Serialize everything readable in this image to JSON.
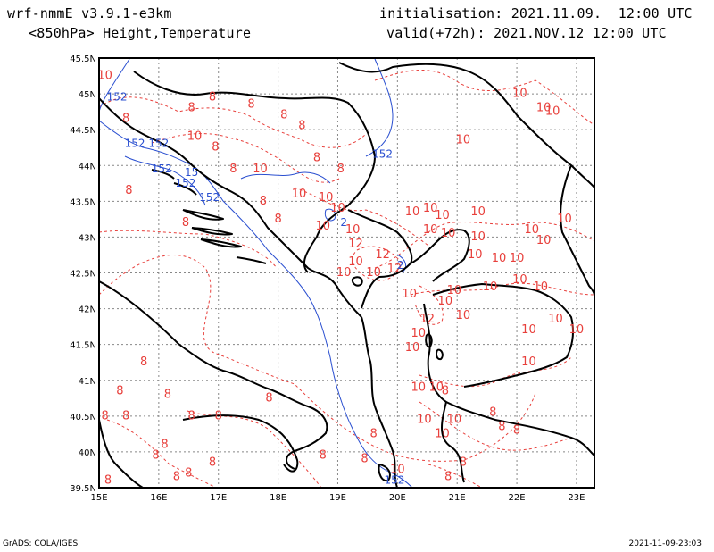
{
  "header": {
    "model": "wrf-nmmE_v3.9.1-e3km",
    "field": "<850hPa> Height,Temperature",
    "init": "initialisation: 2021.11.09.  12:00 UTC",
    "valid": "valid(+72h): 2021.NOV.12 12:00 UTC"
  },
  "axes": {
    "lon_ticks": [
      "15E",
      "16E",
      "17E",
      "18E",
      "19E",
      "20E",
      "21E",
      "22E",
      "23E"
    ],
    "lat_ticks": [
      "45.5N",
      "45N",
      "44.5N",
      "44N",
      "43.5N",
      "43N",
      "42.5N",
      "42N",
      "41.5N",
      "41N",
      "40.5N",
      "40N",
      "39.5N"
    ],
    "lon_range": [
      15,
      23.3
    ],
    "lat_range": [
      39.5,
      45.5
    ]
  },
  "footer": {
    "left": "GrADS: COLA/IGES",
    "right": "2021-11-09-23:03"
  },
  "colors": {
    "temperature": "#e8403c",
    "height": "#2a4fd0",
    "coast": "#000000",
    "grid": "#888888"
  },
  "contour_labels": {
    "temperature": [
      {
        "t": "10",
        "lon": 15.1,
        "lat": 45.25
      },
      {
        "t": "8",
        "lon": 15.45,
        "lat": 44.65
      },
      {
        "t": "8",
        "lon": 16.55,
        "lat": 44.8
      },
      {
        "t": "8",
        "lon": 16.9,
        "lat": 44.95
      },
      {
        "t": "8",
        "lon": 17.55,
        "lat": 44.85
      },
      {
        "t": "8",
        "lon": 18.1,
        "lat": 44.7
      },
      {
        "t": "8",
        "lon": 18.4,
        "lat": 44.55
      },
      {
        "t": "10",
        "lon": 16.6,
        "lat": 44.4
      },
      {
        "t": "8",
        "lon": 16.95,
        "lat": 44.25
      },
      {
        "t": "8",
        "lon": 17.25,
        "lat": 43.95
      },
      {
        "t": "10",
        "lon": 17.7,
        "lat": 43.95
      },
      {
        "t": "8",
        "lon": 18.65,
        "lat": 44.1
      },
      {
        "t": "8",
        "lon": 19.05,
        "lat": 43.95
      },
      {
        "t": "10",
        "lon": 18.35,
        "lat": 43.6
      },
      {
        "t": "8",
        "lon": 17.75,
        "lat": 43.5
      },
      {
        "t": "8",
        "lon": 18.0,
        "lat": 43.25
      },
      {
        "t": "10",
        "lon": 18.8,
        "lat": 43.55
      },
      {
        "t": "10",
        "lon": 19.0,
        "lat": 43.4
      },
      {
        "t": "10",
        "lon": 19.25,
        "lat": 43.1
      },
      {
        "t": "10",
        "lon": 18.75,
        "lat": 43.15
      },
      {
        "t": "12",
        "lon": 19.3,
        "lat": 42.9
      },
      {
        "t": "10",
        "lon": 19.3,
        "lat": 42.65
      },
      {
        "t": "12",
        "lon": 19.75,
        "lat": 42.75
      },
      {
        "t": "10",
        "lon": 19.6,
        "lat": 42.5
      },
      {
        "t": "12",
        "lon": 19.95,
        "lat": 42.55
      },
      {
        "t": "10",
        "lon": 19.1,
        "lat": 42.5
      },
      {
        "t": "8",
        "lon": 15.5,
        "lat": 43.65
      },
      {
        "t": "8",
        "lon": 16.45,
        "lat": 43.2
      },
      {
        "t": "10",
        "lon": 20.25,
        "lat": 43.35
      },
      {
        "t": "10",
        "lon": 20.55,
        "lat": 43.4
      },
      {
        "t": "10",
        "lon": 20.75,
        "lat": 43.3
      },
      {
        "t": "10",
        "lon": 21.35,
        "lat": 43.35
      },
      {
        "t": "10",
        "lon": 20.55,
        "lat": 43.1
      },
      {
        "t": "10",
        "lon": 20.85,
        "lat": 43.05
      },
      {
        "t": "10",
        "lon": 21.35,
        "lat": 43.0
      },
      {
        "t": "10",
        "lon": 21.3,
        "lat": 42.75
      },
      {
        "t": "10",
        "lon": 21.7,
        "lat": 42.7
      },
      {
        "t": "10",
        "lon": 22.0,
        "lat": 42.7
      },
      {
        "t": "10",
        "lon": 22.25,
        "lat": 43.1
      },
      {
        "t": "10",
        "lon": 22.45,
        "lat": 42.95
      },
      {
        "t": "10",
        "lon": 22.8,
        "lat": 43.25
      },
      {
        "t": "10",
        "lon": 21.1,
        "lat": 44.35
      },
      {
        "t": "10",
        "lon": 22.05,
        "lat": 45.0
      },
      {
        "t": "10",
        "lon": 22.45,
        "lat": 44.8
      },
      {
        "t": "10",
        "lon": 22.6,
        "lat": 44.75
      },
      {
        "t": "10",
        "lon": 20.95,
        "lat": 42.25
      },
      {
        "t": "10",
        "lon": 21.55,
        "lat": 42.3
      },
      {
        "t": "10",
        "lon": 22.05,
        "lat": 42.4
      },
      {
        "t": "10",
        "lon": 22.4,
        "lat": 42.3
      },
      {
        "t": "10",
        "lon": 20.8,
        "lat": 42.1
      },
      {
        "t": "12",
        "lon": 20.5,
        "lat": 41.85
      },
      {
        "t": "10",
        "lon": 20.2,
        "lat": 42.2
      },
      {
        "t": "10",
        "lon": 20.35,
        "lat": 41.65
      },
      {
        "t": "10",
        "lon": 20.25,
        "lat": 41.45
      },
      {
        "t": "10",
        "lon": 21.1,
        "lat": 41.9
      },
      {
        "t": "10",
        "lon": 22.2,
        "lat": 41.7
      },
      {
        "t": "10",
        "lon": 22.65,
        "lat": 41.85
      },
      {
        "t": "10",
        "lon": 23.0,
        "lat": 41.7
      },
      {
        "t": "10",
        "lon": 22.2,
        "lat": 41.25
      },
      {
        "t": "10",
        "lon": 20.35,
        "lat": 40.9
      },
      {
        "t": "10",
        "lon": 20.65,
        "lat": 40.9
      },
      {
        "t": "8",
        "lon": 20.8,
        "lat": 40.85
      },
      {
        "t": "8",
        "lon": 15.75,
        "lat": 41.25
      },
      {
        "t": "8",
        "lon": 15.35,
        "lat": 40.85
      },
      {
        "t": "8",
        "lon": 16.15,
        "lat": 40.8
      },
      {
        "t": "8",
        "lon": 15.1,
        "lat": 40.5
      },
      {
        "t": "8",
        "lon": 15.45,
        "lat": 40.5
      },
      {
        "t": "8",
        "lon": 16.55,
        "lat": 40.5
      },
      {
        "t": "8",
        "lon": 17.0,
        "lat": 40.5
      },
      {
        "t": "8",
        "lon": 17.85,
        "lat": 40.75
      },
      {
        "t": "10",
        "lon": 20.45,
        "lat": 40.45
      },
      {
        "t": "10",
        "lon": 20.75,
        "lat": 40.25
      },
      {
        "t": "10",
        "lon": 20.95,
        "lat": 40.45
      },
      {
        "t": "8",
        "lon": 21.6,
        "lat": 40.55
      },
      {
        "t": "8",
        "lon": 21.75,
        "lat": 40.35
      },
      {
        "t": "8",
        "lon": 22.0,
        "lat": 40.3
      },
      {
        "t": "8",
        "lon": 19.6,
        "lat": 40.25
      },
      {
        "t": "8",
        "lon": 16.1,
        "lat": 40.1
      },
      {
        "t": "8",
        "lon": 15.95,
        "lat": 39.95
      },
      {
        "t": "8",
        "lon": 16.3,
        "lat": 39.65
      },
      {
        "t": "8",
        "lon": 16.5,
        "lat": 39.7
      },
      {
        "t": "8",
        "lon": 15.15,
        "lat": 39.6
      },
      {
        "t": "8",
        "lon": 16.9,
        "lat": 39.85
      },
      {
        "t": "8",
        "lon": 18.75,
        "lat": 39.95
      },
      {
        "t": "8",
        "lon": 19.45,
        "lat": 39.9
      },
      {
        "t": "10",
        "lon": 20.0,
        "lat": 39.75
      },
      {
        "t": "8",
        "lon": 21.1,
        "lat": 39.85
      },
      {
        "t": "8",
        "lon": 20.85,
        "lat": 39.65
      }
    ],
    "height": [
      {
        "t": "152",
        "lon": 15.3,
        "lat": 44.95
      },
      {
        "t": "152",
        "lon": 15.6,
        "lat": 44.3
      },
      {
        "t": "152",
        "lon": 16.0,
        "lat": 44.3
      },
      {
        "t": "152",
        "lon": 16.05,
        "lat": 43.95
      },
      {
        "t": "15",
        "lon": 16.55,
        "lat": 43.9
      },
      {
        "t": "152",
        "lon": 16.45,
        "lat": 43.75
      },
      {
        "t": "152",
        "lon": 16.85,
        "lat": 43.55
      },
      {
        "t": "152",
        "lon": 19.75,
        "lat": 44.15
      },
      {
        "t": "2",
        "lon": 19.1,
        "lat": 43.2
      },
      {
        "t": "2",
        "lon": 20.05,
        "lat": 42.6
      },
      {
        "t": "152",
        "lon": 19.95,
        "lat": 39.6
      }
    ]
  }
}
